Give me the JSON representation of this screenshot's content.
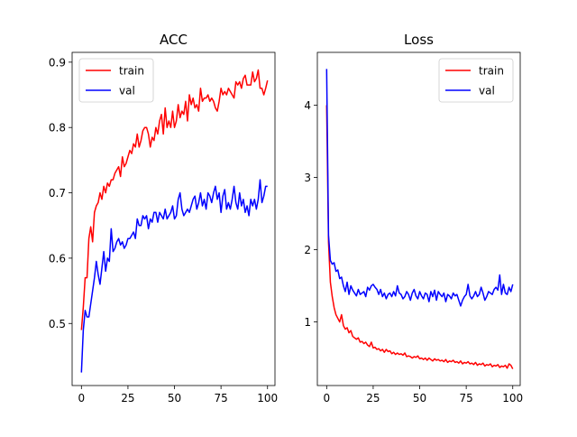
{
  "chart_data": [
    {
      "type": "line",
      "title": "ACC",
      "xlabel": "",
      "ylabel": "",
      "xlim": [
        -5,
        104
      ],
      "ylim": [
        0.405,
        0.915
      ],
      "x_ticks": [
        0,
        25,
        50,
        75,
        100
      ],
      "y_ticks": [
        0.5,
        0.6,
        0.7,
        0.8,
        0.9
      ],
      "y_tick_labels": [
        "0.5",
        "0.6",
        "0.7",
        "0.8",
        "0.9"
      ],
      "grid": false,
      "legend_position": "upper-left",
      "series": [
        {
          "name": "train",
          "color": "#ff0000",
          "x_start": 0,
          "values": [
            0.49,
            0.525,
            0.57,
            0.57,
            0.63,
            0.648,
            0.625,
            0.67,
            0.68,
            0.685,
            0.7,
            0.69,
            0.71,
            0.7,
            0.715,
            0.71,
            0.72,
            0.72,
            0.73,
            0.735,
            0.74,
            0.725,
            0.755,
            0.74,
            0.745,
            0.755,
            0.765,
            0.76,
            0.775,
            0.77,
            0.79,
            0.77,
            0.78,
            0.795,
            0.8,
            0.8,
            0.79,
            0.77,
            0.785,
            0.78,
            0.8,
            0.79,
            0.81,
            0.82,
            0.79,
            0.83,
            0.8,
            0.81,
            0.8,
            0.825,
            0.8,
            0.81,
            0.835,
            0.815,
            0.825,
            0.82,
            0.84,
            0.81,
            0.85,
            0.835,
            0.845,
            0.83,
            0.835,
            0.825,
            0.86,
            0.84,
            0.845,
            0.845,
            0.85,
            0.84,
            0.845,
            0.84,
            0.83,
            0.825,
            0.84,
            0.86,
            0.85,
            0.855,
            0.85,
            0.86,
            0.855,
            0.85,
            0.845,
            0.87,
            0.865,
            0.87,
            0.86,
            0.875,
            0.88,
            0.865,
            0.865,
            0.865,
            0.885,
            0.87,
            0.875,
            0.888,
            0.86,
            0.86,
            0.85,
            0.86,
            0.872
          ]
        },
        {
          "name": "val",
          "color": "#0000ff",
          "x_start": 0,
          "values": [
            0.425,
            0.49,
            0.52,
            0.51,
            0.51,
            0.53,
            0.55,
            0.57,
            0.595,
            0.575,
            0.56,
            0.585,
            0.61,
            0.58,
            0.6,
            0.595,
            0.645,
            0.61,
            0.615,
            0.625,
            0.63,
            0.62,
            0.625,
            0.615,
            0.62,
            0.63,
            0.63,
            0.635,
            0.64,
            0.63,
            0.66,
            0.65,
            0.65,
            0.665,
            0.66,
            0.665,
            0.645,
            0.66,
            0.655,
            0.67,
            0.67,
            0.655,
            0.67,
            0.665,
            0.66,
            0.675,
            0.66,
            0.665,
            0.67,
            0.68,
            0.66,
            0.665,
            0.69,
            0.7,
            0.675,
            0.665,
            0.67,
            0.675,
            0.67,
            0.68,
            0.69,
            0.695,
            0.675,
            0.685,
            0.7,
            0.68,
            0.69,
            0.675,
            0.7,
            0.695,
            0.685,
            0.7,
            0.71,
            0.69,
            0.7,
            0.67,
            0.695,
            0.705,
            0.675,
            0.685,
            0.675,
            0.69,
            0.71,
            0.685,
            0.675,
            0.7,
            0.68,
            0.69,
            0.67,
            0.68,
            0.665,
            0.69,
            0.68,
            0.69,
            0.675,
            0.69,
            0.72,
            0.685,
            0.695,
            0.71,
            0.71
          ]
        }
      ]
    },
    {
      "type": "line",
      "title": "Loss",
      "xlabel": "",
      "ylabel": "",
      "xlim": [
        -5,
        104
      ],
      "ylim": [
        0.12,
        4.73
      ],
      "x_ticks": [
        0,
        25,
        50,
        75,
        100
      ],
      "y_ticks": [
        1,
        2,
        3,
        4
      ],
      "y_tick_labels": [
        "1",
        "2",
        "3",
        "4"
      ],
      "grid": false,
      "legend_position": "upper-right",
      "series": [
        {
          "name": "train",
          "color": "#ff0000",
          "x_start": 0,
          "values": [
            4.0,
            2.1,
            1.55,
            1.35,
            1.2,
            1.1,
            1.05,
            1.0,
            1.1,
            0.95,
            0.9,
            0.92,
            0.85,
            0.88,
            0.8,
            0.78,
            0.76,
            0.78,
            0.72,
            0.73,
            0.7,
            0.72,
            0.68,
            0.66,
            0.72,
            0.64,
            0.65,
            0.62,
            0.63,
            0.6,
            0.62,
            0.58,
            0.62,
            0.59,
            0.6,
            0.56,
            0.58,
            0.55,
            0.57,
            0.55,
            0.56,
            0.54,
            0.57,
            0.52,
            0.53,
            0.52,
            0.5,
            0.52,
            0.51,
            0.53,
            0.49,
            0.5,
            0.48,
            0.5,
            0.47,
            0.5,
            0.48,
            0.46,
            0.49,
            0.47,
            0.48,
            0.46,
            0.47,
            0.45,
            0.48,
            0.44,
            0.46,
            0.45,
            0.47,
            0.44,
            0.45,
            0.43,
            0.46,
            0.42,
            0.44,
            0.43,
            0.45,
            0.42,
            0.43,
            0.41,
            0.44,
            0.4,
            0.42,
            0.41,
            0.43,
            0.39,
            0.41,
            0.4,
            0.42,
            0.38,
            0.4,
            0.39,
            0.41,
            0.37,
            0.39,
            0.38,
            0.4,
            0.36,
            0.42,
            0.4,
            0.35
          ]
        },
        {
          "name": "val",
          "color": "#0000ff",
          "x_start": 0,
          "values": [
            4.5,
            2.2,
            1.85,
            1.8,
            1.82,
            1.7,
            1.72,
            1.6,
            1.62,
            1.5,
            1.42,
            1.55,
            1.38,
            1.5,
            1.44,
            1.4,
            1.36,
            1.45,
            1.38,
            1.4,
            1.42,
            1.35,
            1.48,
            1.44,
            1.5,
            1.52,
            1.48,
            1.45,
            1.38,
            1.45,
            1.35,
            1.4,
            1.32,
            1.38,
            1.4,
            1.35,
            1.42,
            1.36,
            1.5,
            1.4,
            1.38,
            1.32,
            1.35,
            1.42,
            1.38,
            1.3,
            1.4,
            1.45,
            1.36,
            1.32,
            1.42,
            1.36,
            1.32,
            1.4,
            1.38,
            1.28,
            1.42,
            1.35,
            1.44,
            1.3,
            1.42,
            1.38,
            1.35,
            1.4,
            1.28,
            1.38,
            1.36,
            1.32,
            1.4,
            1.36,
            1.38,
            1.3,
            1.22,
            1.3,
            1.35,
            1.38,
            1.52,
            1.36,
            1.32,
            1.36,
            1.42,
            1.35,
            1.38,
            1.48,
            1.4,
            1.3,
            1.35,
            1.42,
            1.4,
            1.38,
            1.45,
            1.48,
            1.44,
            1.65,
            1.38,
            1.52,
            1.4,
            1.38,
            1.48,
            1.42,
            1.52
          ]
        }
      ]
    }
  ]
}
